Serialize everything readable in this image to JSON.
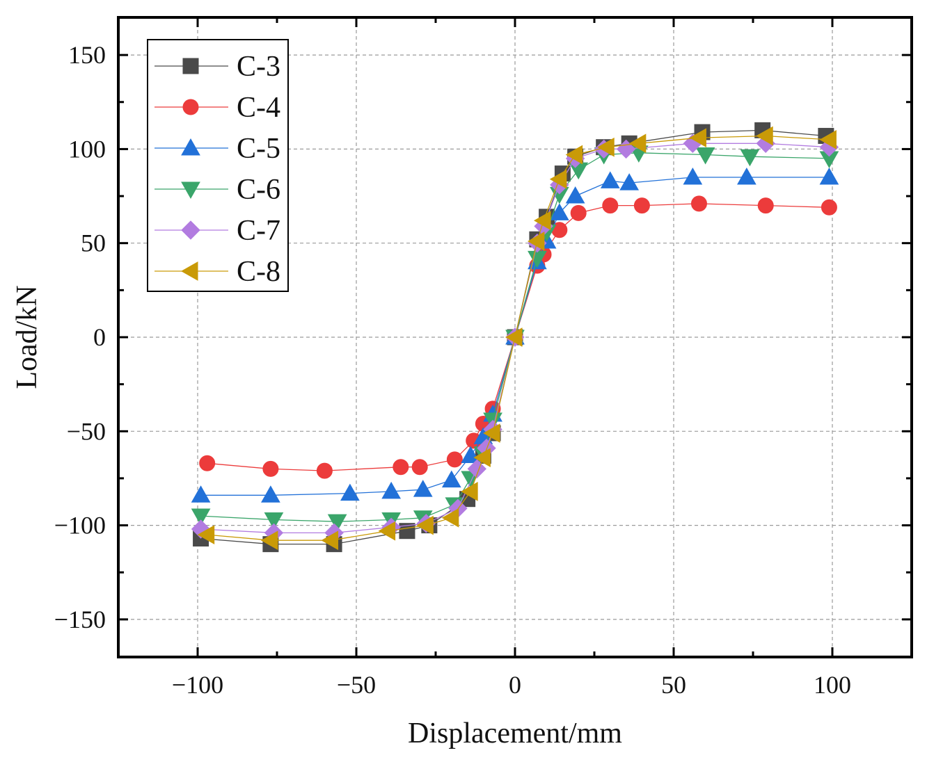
{
  "chart_data": {
    "type": "line",
    "xlabel": "Displacement/mm",
    "ylabel": "Load/kN",
    "xlim": [
      -125,
      125
    ],
    "ylim": [
      -170,
      170
    ],
    "xticks": [
      -100,
      -50,
      0,
      50,
      100
    ],
    "yticks": [
      -150,
      -100,
      -50,
      0,
      50,
      100,
      150
    ],
    "xtick_labels": [
      "−100",
      "−50",
      "0",
      "50",
      "100"
    ],
    "ytick_labels": [
      "−150",
      "−100",
      "−50",
      "0",
      "50",
      "100",
      "150"
    ],
    "grid": true,
    "legend_position": "top-left",
    "series": [
      {
        "name": "C-3",
        "color": "#4a4a4a",
        "marker": "square",
        "x": [
          -99,
          -77,
          -57,
          -34,
          -27,
          -15,
          -10,
          -7,
          0,
          7,
          10,
          15,
          19,
          28,
          36,
          59,
          78,
          98
        ],
        "y": [
          -107,
          -110,
          -110,
          -103,
          -100,
          -86,
          -63,
          -51,
          0,
          52,
          64,
          87,
          96,
          101,
          103,
          109,
          110,
          107
        ]
      },
      {
        "name": "C-4",
        "color": "#ec3b3b",
        "marker": "circle",
        "x": [
          -97,
          -77,
          -60,
          -36,
          -30,
          -19,
          -13,
          -10,
          -7,
          0,
          7,
          9,
          14,
          20,
          30,
          40,
          58,
          79,
          99
        ],
        "y": [
          -67,
          -70,
          -71,
          -69,
          -69,
          -65,
          -55,
          -46,
          -38,
          0,
          38,
          44,
          57,
          66,
          70,
          70,
          71,
          70,
          69
        ]
      },
      {
        "name": "C-5",
        "color": "#2271d8",
        "marker": "triangle-up",
        "x": [
          -99,
          -77,
          -52,
          -39,
          -29,
          -20,
          -14,
          -10,
          -7,
          0,
          7,
          10,
          14,
          19,
          30,
          36,
          56,
          73,
          99
        ],
        "y": [
          -84,
          -84,
          -83,
          -82,
          -81,
          -76,
          -63,
          -53,
          -41,
          0,
          40,
          51,
          66,
          75,
          83,
          82,
          85,
          85,
          85
        ]
      },
      {
        "name": "C-6",
        "color": "#3aa56a",
        "marker": "triangle-down",
        "x": [
          -99,
          -76,
          -56,
          -39,
          -29,
          -19,
          -14,
          -10,
          -7,
          0,
          7,
          10,
          14,
          20,
          28,
          39,
          60,
          74,
          99
        ],
        "y": [
          -95,
          -97,
          -98,
          -97,
          -96,
          -89,
          -75,
          -62,
          -44,
          0,
          42,
          56,
          76,
          89,
          97,
          98,
          97,
          96,
          95
        ]
      },
      {
        "name": "C-7",
        "color": "#b27ce0",
        "marker": "diamond",
        "x": [
          -99,
          -76,
          -57,
          -39,
          -28,
          -18,
          -12,
          -9,
          -7,
          0,
          7,
          9,
          14,
          19,
          28,
          35,
          56,
          79,
          99
        ],
        "y": [
          -102,
          -104,
          -104,
          -101,
          -99,
          -91,
          -70,
          -59,
          -49,
          0,
          50,
          59,
          81,
          95,
          100,
          100,
          103,
          103,
          101
        ]
      },
      {
        "name": "C-8",
        "color": "#c99a07",
        "marker": "triangle-left",
        "x": [
          -97,
          -77,
          -58,
          -40,
          -28,
          -20,
          -14,
          -10,
          -7,
          0,
          7,
          9,
          14,
          19,
          29,
          39,
          58,
          79,
          99
        ],
        "y": [
          -105,
          -108,
          -108,
          -103,
          -100,
          -96,
          -82,
          -64,
          -51,
          0,
          51,
          62,
          84,
          97,
          101,
          103,
          106,
          107,
          105
        ]
      }
    ]
  }
}
